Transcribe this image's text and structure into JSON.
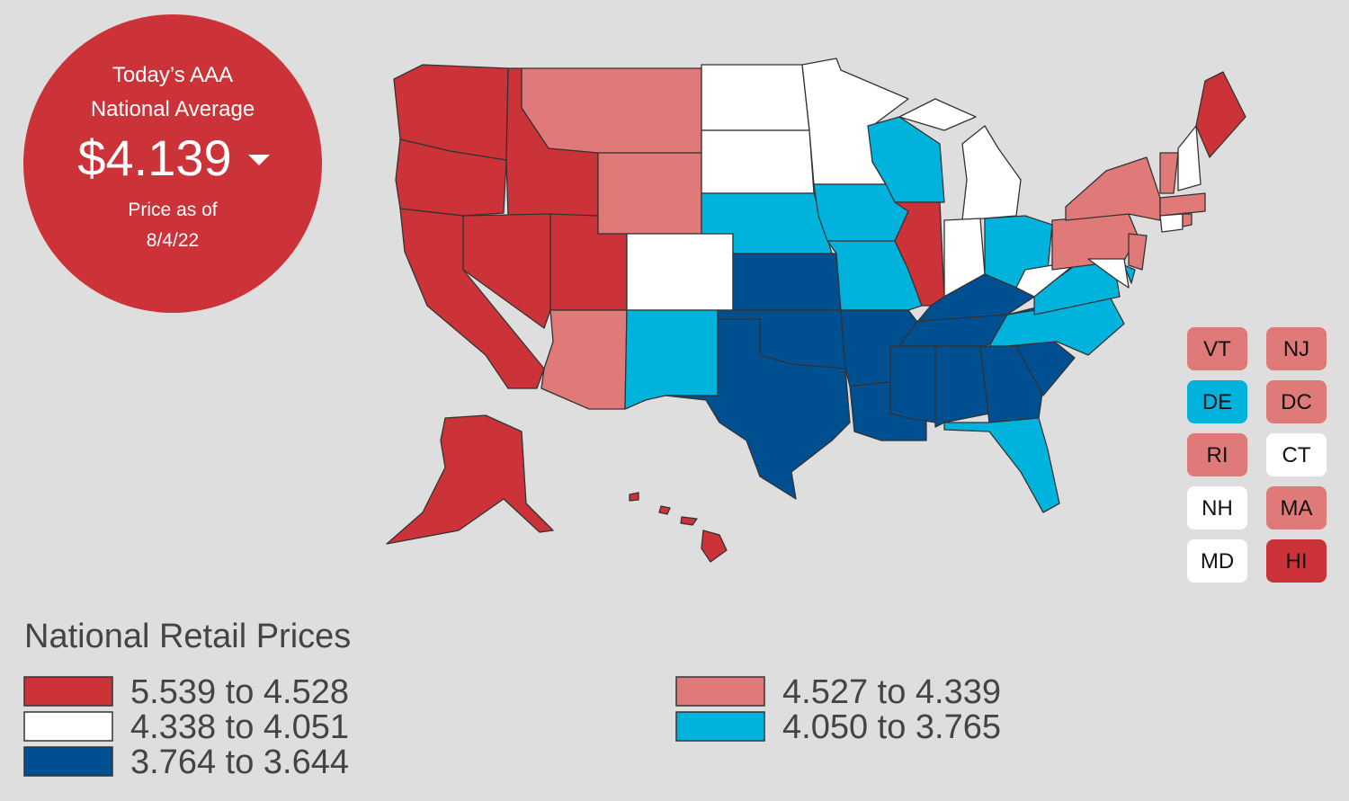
{
  "header": {
    "line1": "Today’s AAA",
    "line2": "National Average",
    "price": "$4.139",
    "as_of_label": "Price as of",
    "as_of_date": "8/4/22"
  },
  "legend": {
    "title": "National Retail Prices",
    "items": [
      {
        "label": "5.539 to 4.528",
        "color": "#cc3338"
      },
      {
        "label": "4.527 to 4.339",
        "color": "#e07a78"
      },
      {
        "label": "4.338 to 4.051",
        "color": "#ffffff"
      },
      {
        "label": "4.050 to 3.765",
        "color": "#00b3dd"
      },
      {
        "label": "3.764 to 3.644",
        "color": "#004f90"
      }
    ]
  },
  "small_states": [
    {
      "label": "VT",
      "color": "#e07a78"
    },
    {
      "label": "NJ",
      "color": "#e07a78"
    },
    {
      "label": "DE",
      "color": "#00b3dd"
    },
    {
      "label": "DC",
      "color": "#e07a78"
    },
    {
      "label": "RI",
      "color": "#e07a78"
    },
    {
      "label": "CT",
      "color": "#ffffff"
    },
    {
      "label": "NH",
      "color": "#ffffff"
    },
    {
      "label": "MA",
      "color": "#e07a78"
    },
    {
      "label": "MD",
      "color": "#ffffff"
    },
    {
      "label": "HI",
      "color": "#cc3338"
    }
  ]
}
